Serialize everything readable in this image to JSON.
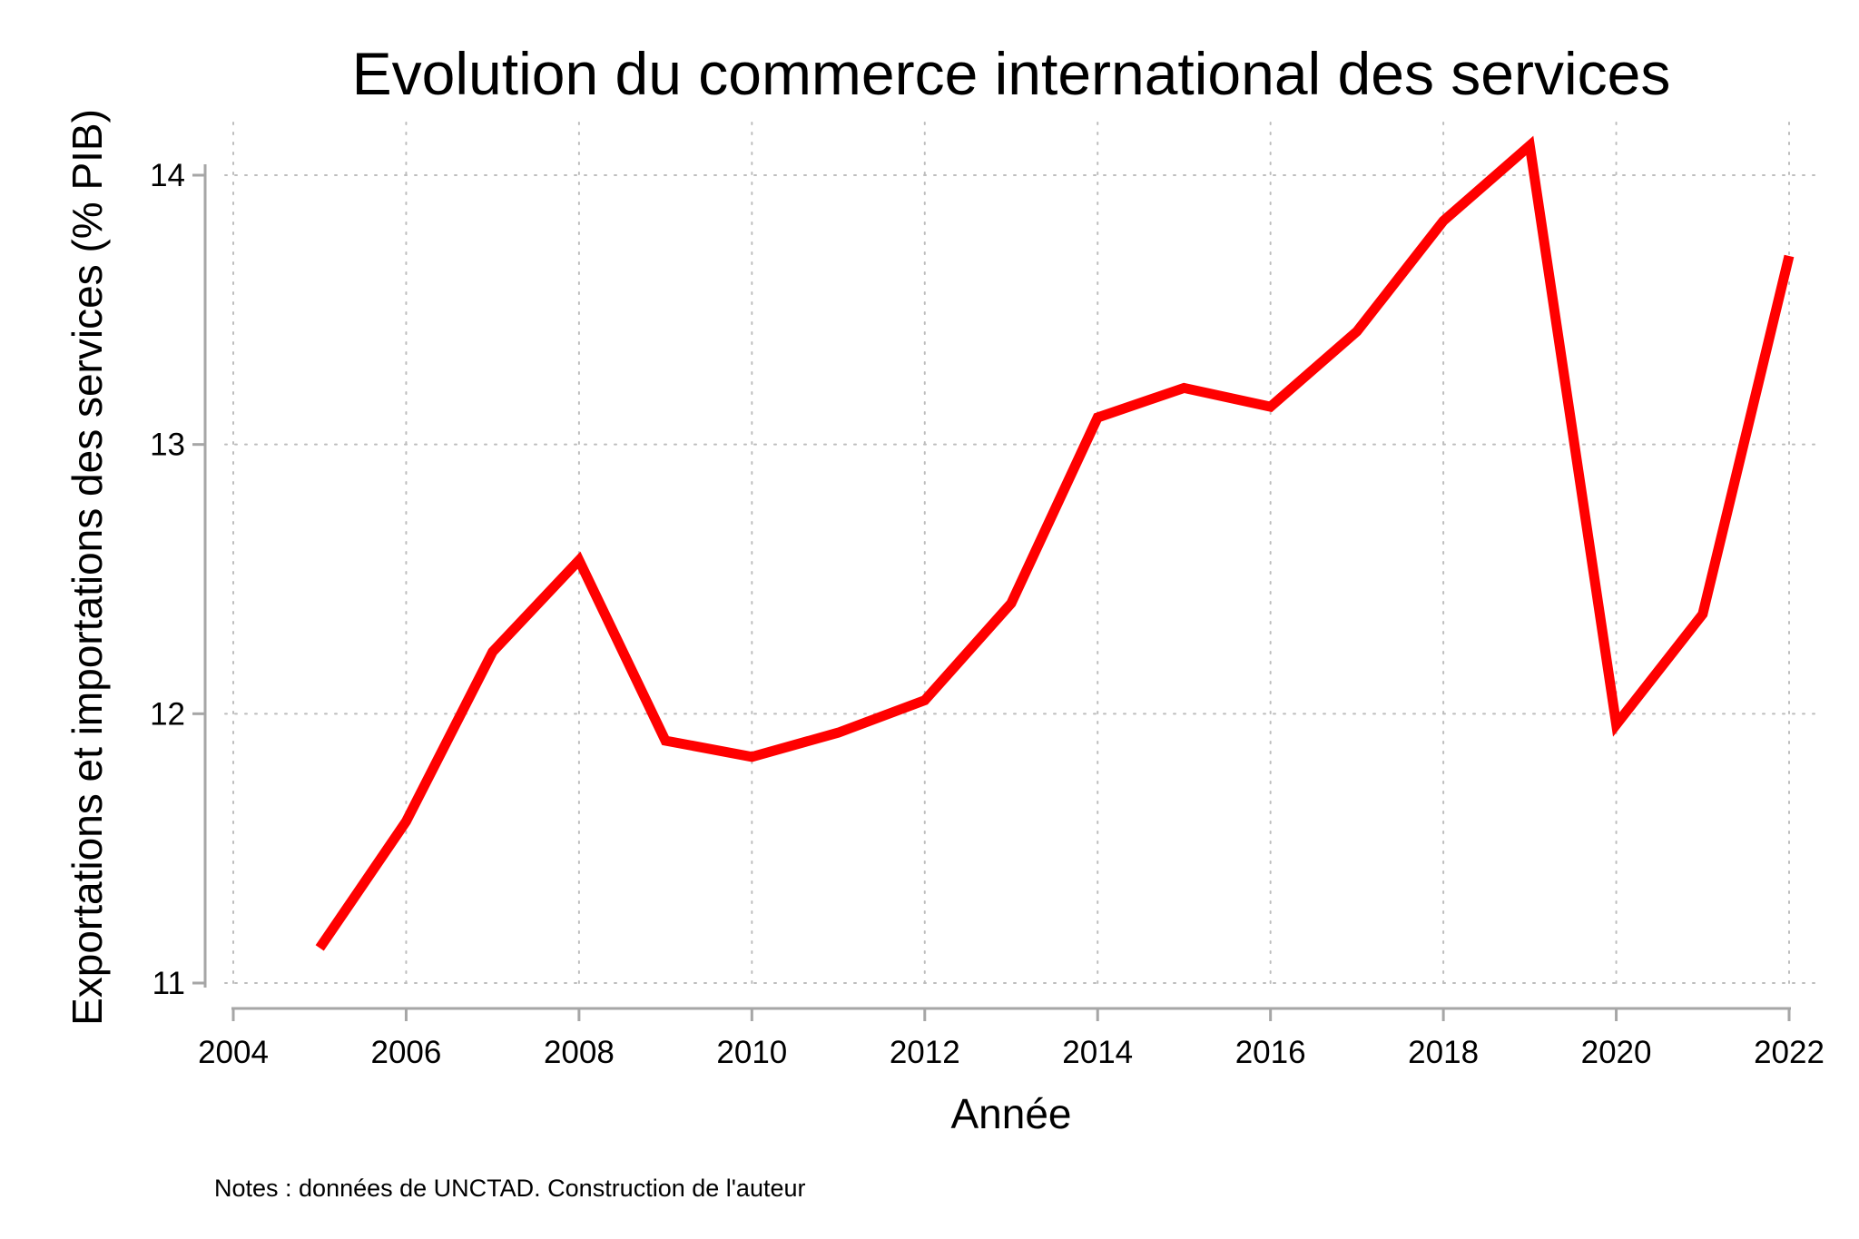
{
  "chart_data": {
    "type": "line",
    "title": "Evolution du commerce international des services",
    "xlabel": "Année",
    "ylabel": "Exportations et importations des services (% PIB)",
    "note": "Notes : données de UNCTAD. Construction de l'auteur",
    "xlim": [
      2004,
      2022
    ],
    "ylim": [
      11,
      14
    ],
    "xticks": [
      2004,
      2006,
      2008,
      2010,
      2012,
      2014,
      2016,
      2018,
      2020,
      2022
    ],
    "yticks": [
      11,
      12,
      13,
      14
    ],
    "grid": true,
    "line_color": "#ff0000",
    "series": [
      {
        "x": [
          2005,
          2006,
          2007,
          2008,
          2009,
          2010,
          2011,
          2012,
          2013,
          2014,
          2015,
          2016,
          2017,
          2018,
          2019,
          2020,
          2021,
          2022
        ],
        "values": [
          11.13,
          11.6,
          12.23,
          12.57,
          11.9,
          11.84,
          11.93,
          12.05,
          12.41,
          13.1,
          13.21,
          13.14,
          13.42,
          13.83,
          14.11,
          11.96,
          12.37,
          13.7
        ]
      }
    ]
  }
}
